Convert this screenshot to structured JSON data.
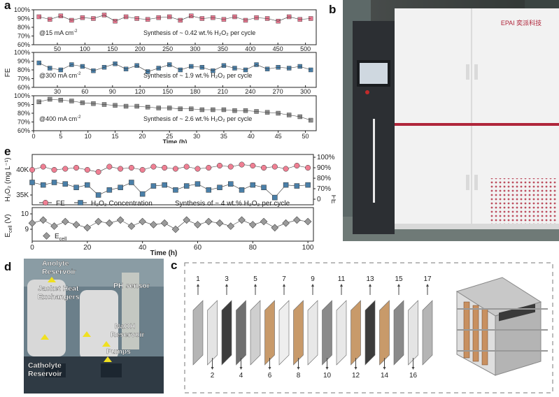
{
  "panels": {
    "a": {
      "letter": "a",
      "ylabel": "FE",
      "xlabel": "Time (h)",
      "bottom_ticks": [
        "0",
        "5",
        "10",
        "15",
        "20",
        "25",
        "30",
        "35",
        "40",
        "45",
        "50"
      ],
      "rows": [
        {
          "condition": "@15 mA cm",
          "condition_sup": "-2",
          "synthesis": "Synthesis of ~ 0.42 wt.% H₂O₂ per cycle",
          "yticks": [
            "100%",
            "90%",
            "80%",
            "70%",
            "60%"
          ],
          "top_ticks": [
            "50",
            "100",
            "150",
            "200",
            "250",
            "300",
            "350",
            "400",
            "450",
            "500"
          ],
          "marker_color": "#e6778f"
        },
        {
          "condition": "@300 mA cm",
          "condition_sup": "-2",
          "synthesis": "Synthesis of ~ 1.9 wt.% H₂O₂ per cycle",
          "yticks": [
            "100%",
            "90%",
            "80%",
            "70%",
            "60%"
          ],
          "top_ticks": [
            "30",
            "60",
            "90",
            "120",
            "150",
            "180",
            "210",
            "240",
            "270",
            "300"
          ],
          "marker_color": "#4a7fa8"
        },
        {
          "condition": "@400 mA cm",
          "condition_sup": "-2",
          "synthesis": "Synthesis of ~ 2.6 wt.% H₂O₂ per cycle",
          "yticks": [
            "100%",
            "90%",
            "80%",
            "70%",
            "60%"
          ],
          "top_ticks": [],
          "marker_color": "#8c8c8c"
        }
      ]
    },
    "b": {
      "letter": "b",
      "brand": "EPAI 奕派科技"
    },
    "e": {
      "letter": "e",
      "ylabel_left": "H₂O₂ (mg L⁻¹)",
      "ylabel_right": "FE",
      "ylabel_bottom": "E",
      "ylabel_bottom_sub": "cell",
      "ylabel_bottom_unit": " (V)",
      "left_ticks": [
        "40K",
        "35K"
      ],
      "right_ticks": [
        "100%",
        "90%",
        "80%",
        "70%",
        "0"
      ],
      "ecell_ticks": [
        "10",
        "9"
      ],
      "x_ticks": [
        "0",
        "20",
        "40",
        "60",
        "80",
        "100"
      ],
      "xlabel": "Time (h)",
      "legend_fe": "FE",
      "legend_h2o2": "H₂O₂ Concentration",
      "synthesis": "Synthesis of ~ 4 wt.% H₂O₂ per cycle",
      "legend_ecell": "E",
      "legend_ecell_sub": "cell"
    },
    "d": {
      "letter": "d",
      "labels": {
        "anolyte": [
          "Anolyte",
          "Reservoir"
        ],
        "jacket": [
          "Jacket Heat",
          "Exchangers"
        ],
        "ph": "PH sensor",
        "naoh": [
          "NaOH",
          "Reservoir"
        ],
        "catholyte": [
          "Catholyte",
          "Reservoir"
        ],
        "pumps": "Pumps"
      }
    },
    "c": {
      "letter": "c",
      "top_numbers": [
        "1",
        "3",
        "5",
        "7",
        "9",
        "11",
        "13",
        "15",
        "17"
      ],
      "bottom_numbers": [
        "2",
        "4",
        "6",
        "8",
        "10",
        "12",
        "14",
        "16"
      ]
    }
  },
  "chart_data": [
    {
      "type": "scatter",
      "title": "",
      "xlabel": "Time (h)",
      "ylabel": "FE",
      "xlim": [
        0,
        52
      ],
      "ylim": [
        60,
        100
      ],
      "series": [
        {
          "name": "",
          "values_desc": "",
          "x": [
            1,
            3,
            5,
            7,
            9,
            11,
            13,
            15,
            17,
            19,
            21,
            23,
            25,
            27,
            29,
            31,
            33,
            35,
            37,
            39,
            41,
            43,
            45,
            47,
            49,
            51
          ],
          "y": [
            92,
            89,
            93,
            88,
            91,
            90,
            94,
            87,
            92,
            90,
            89,
            91,
            92,
            88,
            93,
            90,
            91,
            89,
            92,
            88,
            91,
            90,
            87,
            92,
            89,
            90
          ]
        },
        {
          "name": "",
          "values_desc": "",
          "x": [
            1,
            3,
            5,
            7,
            9,
            11,
            13,
            15,
            17,
            19,
            21,
            23,
            25,
            27,
            29,
            31,
            33,
            35,
            37,
            39,
            41,
            43,
            45,
            47,
            49,
            51
          ],
          "y": [
            88,
            82,
            80,
            86,
            84,
            79,
            83,
            87,
            81,
            85,
            78,
            82,
            86,
            80,
            84,
            83,
            79,
            85,
            82,
            80,
            86,
            81,
            83,
            82,
            84,
            80
          ]
        },
        {
          "name": "",
          "values_desc": "",
          "x": [
            1,
            3,
            5,
            7,
            9,
            11,
            13,
            15,
            17,
            19,
            21,
            23,
            25,
            27,
            29,
            31,
            33,
            35,
            37,
            39,
            41,
            43,
            45,
            47,
            49,
            51
          ],
          "y": [
            93,
            96,
            95,
            94,
            92,
            91,
            90,
            89,
            88,
            88,
            87,
            86,
            86,
            85,
            85,
            84,
            84,
            84,
            83,
            83,
            82,
            81,
            80,
            78,
            76,
            72
          ]
        }
      ]
    },
    {
      "type": "scatter",
      "title": "",
      "xlabel": "Time (h)",
      "ylabel": "H₂O₂ (mg L⁻¹)",
      "xlim": [
        0,
        102
      ],
      "series": [
        {
          "name": "FE",
          "x": [
            0,
            4,
            8,
            12,
            16,
            20,
            24,
            28,
            32,
            36,
            40,
            44,
            48,
            52,
            56,
            60,
            64,
            68,
            72,
            76,
            80,
            84,
            88,
            92,
            96,
            100
          ],
          "y": [
            88,
            91,
            88,
            89,
            90,
            88,
            86,
            91,
            89,
            90,
            88,
            91,
            90,
            89,
            91,
            89,
            90,
            92,
            91,
            93,
            92,
            90,
            91,
            89,
            92,
            90
          ]
        },
        {
          "name": "H₂O₂ Concentration",
          "x": [
            0,
            4,
            8,
            12,
            16,
            20,
            24,
            28,
            32,
            36,
            40,
            44,
            48,
            52,
            56,
            60,
            64,
            68,
            72,
            76,
            80,
            84,
            88,
            92,
            96,
            100
          ],
          "y": [
            37500,
            37000,
            37500,
            37200,
            36500,
            37000,
            35000,
            36000,
            36500,
            37500,
            35200,
            36800,
            37000,
            36000,
            36800,
            37200,
            36000,
            36500,
            37200,
            36000,
            37000,
            36500,
            34500,
            37000,
            36800,
            37000
          ]
        },
        {
          "name": "Ecell",
          "x": [
            0,
            4,
            8,
            12,
            16,
            20,
            24,
            28,
            32,
            36,
            40,
            44,
            48,
            52,
            56,
            60,
            64,
            68,
            72,
            76,
            80,
            84,
            88,
            92,
            96,
            100
          ],
          "y": [
            9.4,
            9.6,
            9.2,
            9.5,
            9.3,
            9.1,
            9.5,
            9.4,
            9.6,
            9.2,
            9.5,
            9.3,
            9.4,
            9.0,
            9.6,
            9.3,
            9.5,
            9.4,
            9.2,
            9.6,
            9.3,
            9.5,
            9.1,
            9.4,
            9.6,
            9.5
          ]
        }
      ]
    }
  ]
}
